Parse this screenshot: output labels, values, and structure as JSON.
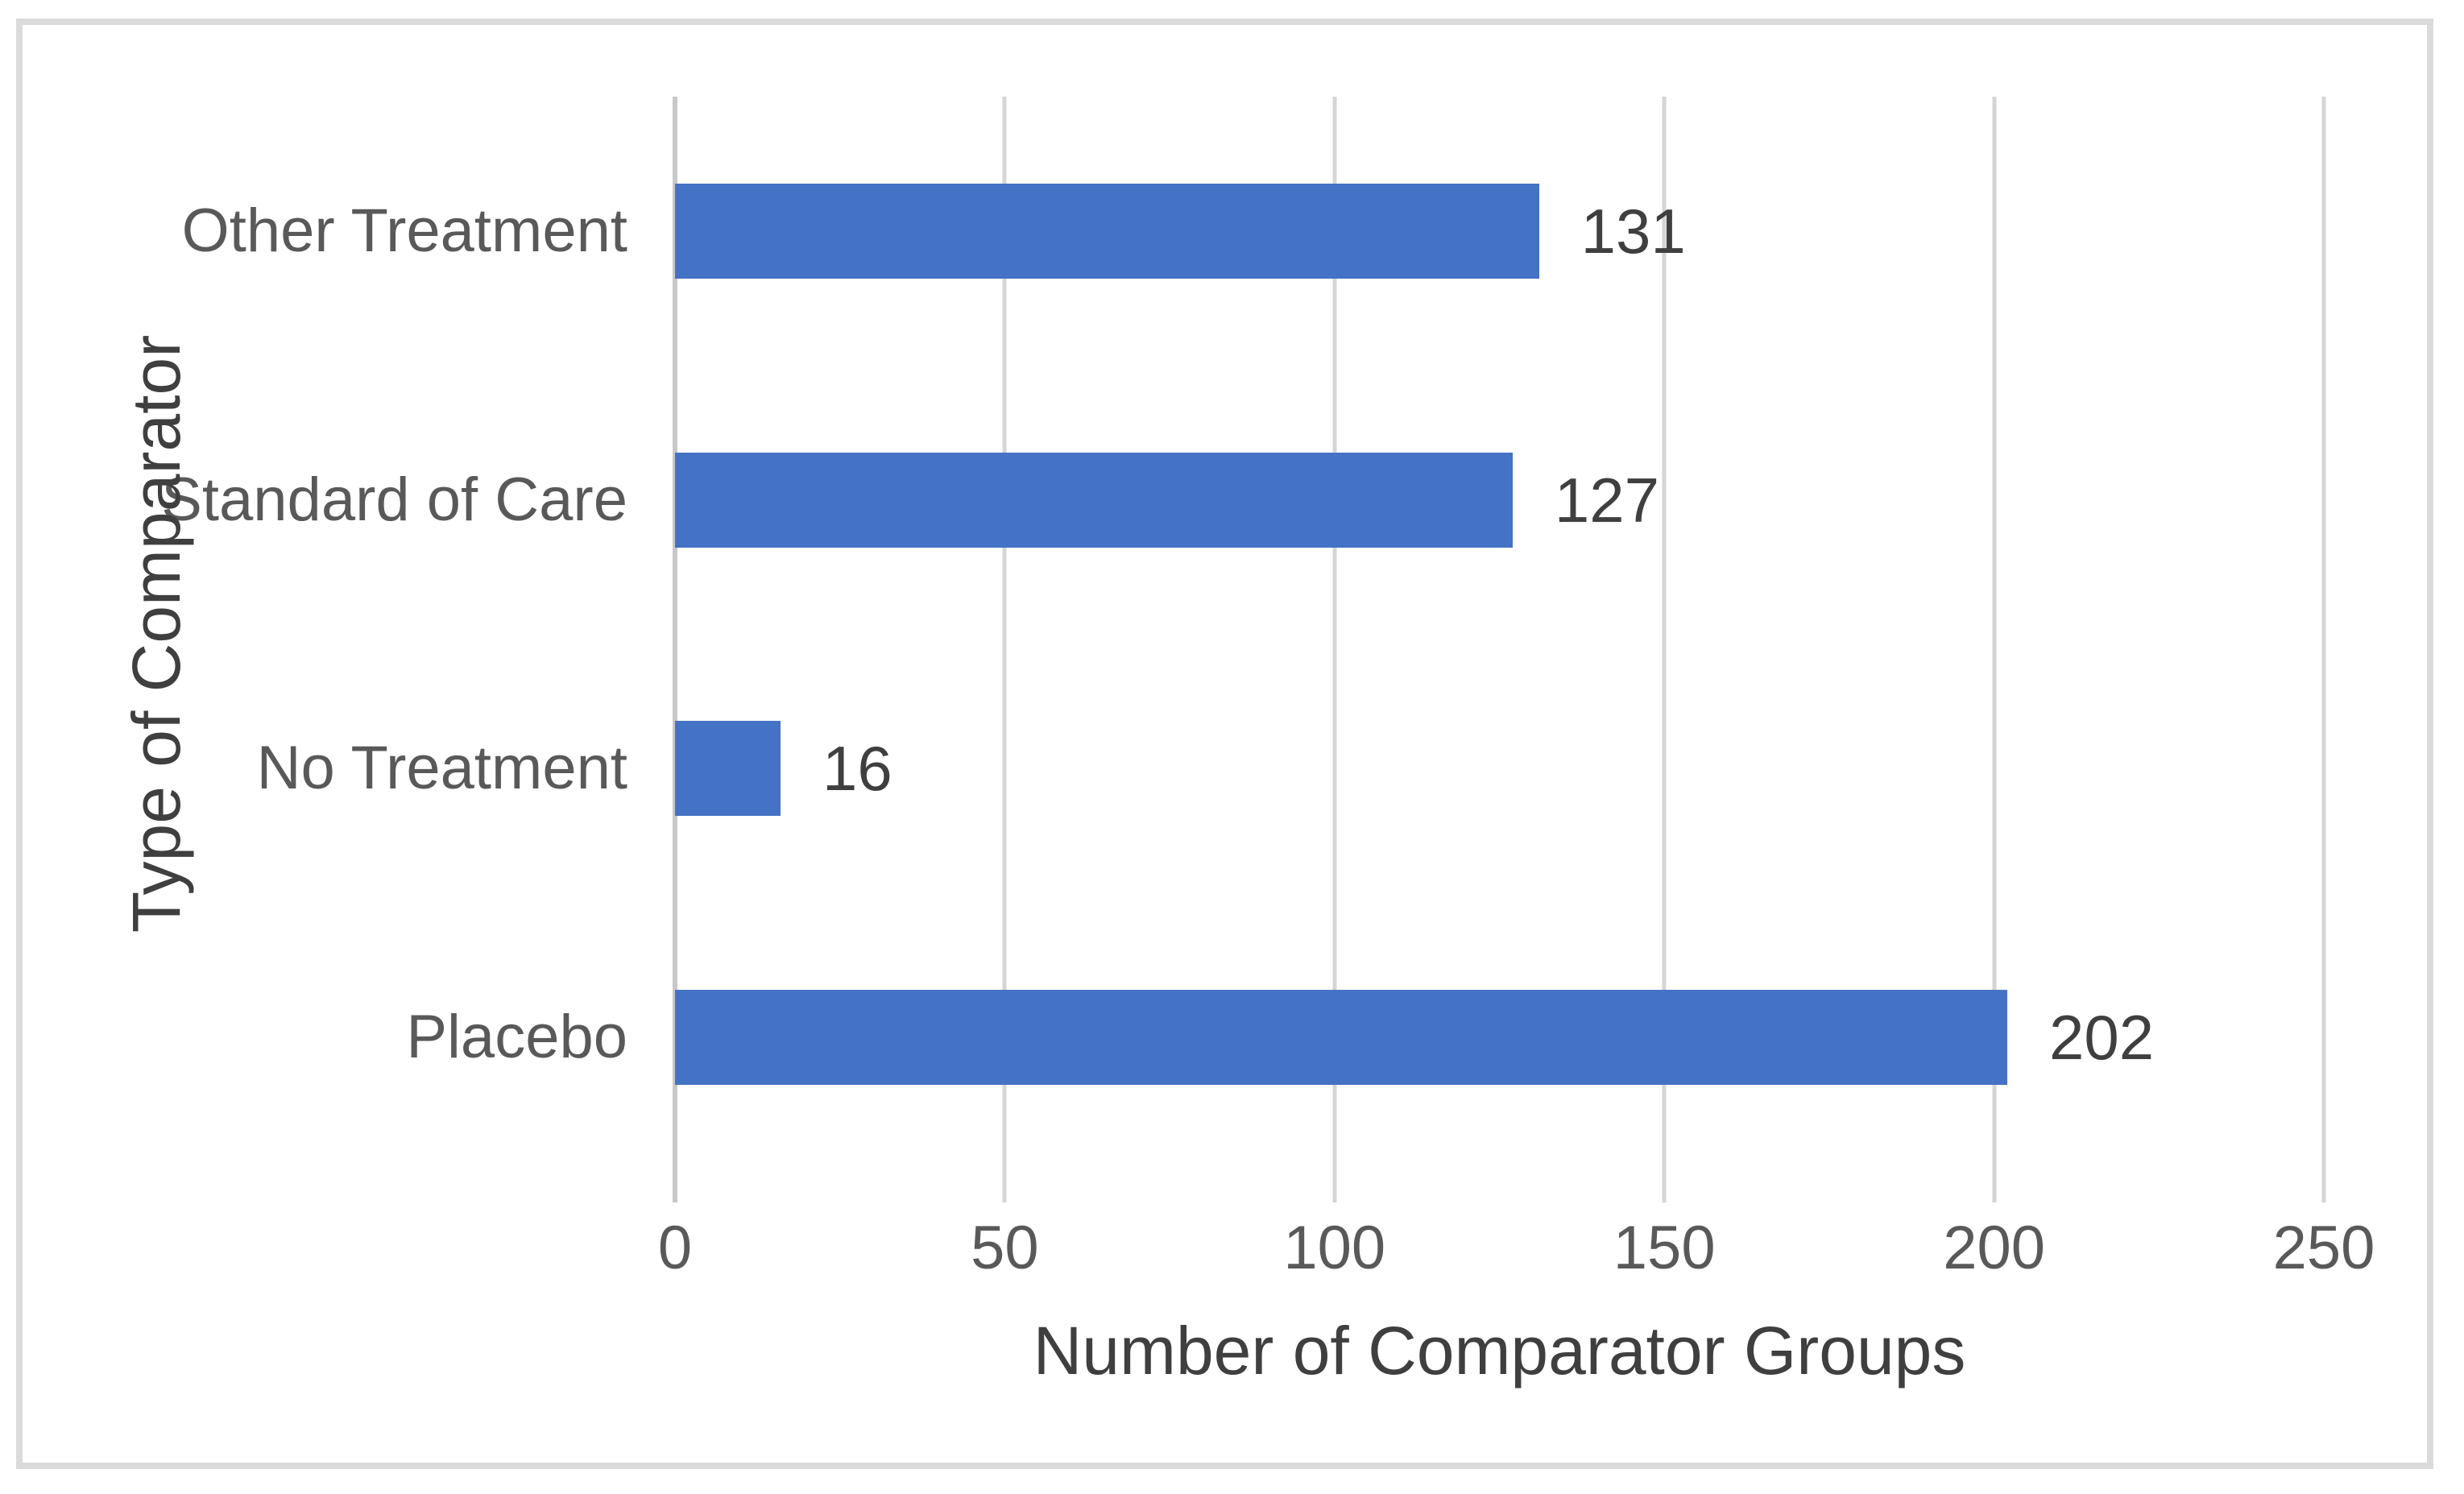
{
  "chart_data": {
    "type": "bar",
    "orientation": "horizontal",
    "title": "",
    "categories": [
      "Other Treatment",
      "Standard of Care",
      "No Treatment",
      "Placebo"
    ],
    "values": [
      131,
      127,
      16,
      202
    ],
    "xlabel": "Number of Comparator Groups",
    "ylabel": "Type of Comparator",
    "xlim": [
      0,
      250
    ],
    "x_ticks": [
      "0",
      "50",
      "100",
      "150",
      "200",
      "250"
    ],
    "grid": "vertical",
    "legend": "none",
    "data_labels_shown": true,
    "bar_color": "#4472C4"
  },
  "colors": {
    "bar": "#4472C4",
    "gridline": "#D5D5D5",
    "axis_line": "#C8C8C8",
    "frame_border": "#DBDBDB",
    "tick_text": "#595959",
    "title_text": "#3F3F3F"
  }
}
